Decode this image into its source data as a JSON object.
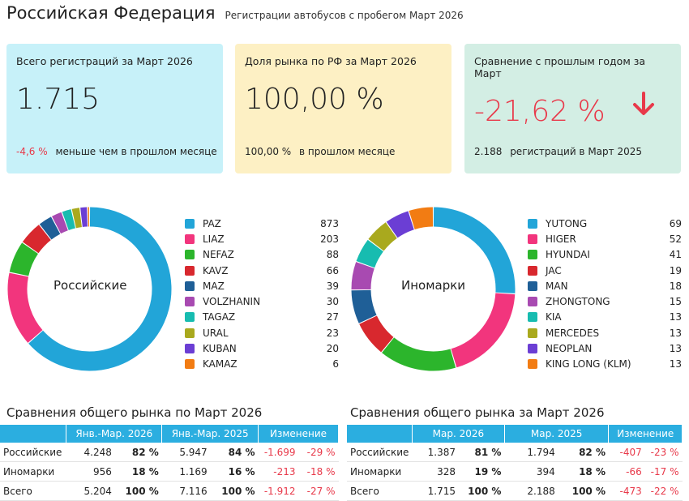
{
  "header": {
    "title": "Российская Федерация",
    "subtitle": "Регистрации автобусов с пробегом Март 2026"
  },
  "cards": {
    "total": {
      "label": "Всего регистраций за Март 2026",
      "value": "1.715",
      "delta": "-4,6 %",
      "delta_text": "меньше чем в прошлом месяце",
      "bg": "#c7f1f9"
    },
    "share": {
      "label": "Доля рынка по РФ за Март 2026",
      "value": "100,00 %",
      "delta": "100,00 %",
      "delta_text": "в прошлом месяце",
      "bg": "#fdf0c4"
    },
    "yoy": {
      "label": "Сравнение с прошлым годом за Март",
      "value": "-21,62 %",
      "delta": "2.188",
      "delta_text": "регистраций в Март 2025",
      "bg": "#d3eee4"
    }
  },
  "russian": {
    "center_label": "Российские",
    "items": [
      {
        "name": "PAZ",
        "value": 873,
        "color": "#22a5d8"
      },
      {
        "name": "LIAZ",
        "value": 203,
        "color": "#f2357d"
      },
      {
        "name": "NEFAZ",
        "value": 88,
        "color": "#2cb52c"
      },
      {
        "name": "KAVZ",
        "value": 66,
        "color": "#d8282e"
      },
      {
        "name": "MAZ",
        "value": 39,
        "color": "#1f5f97"
      },
      {
        "name": "VOLZHANIN",
        "value": 30,
        "color": "#a84ab1"
      },
      {
        "name": "TAGAZ",
        "value": 27,
        "color": "#17bcb0"
      },
      {
        "name": "URAL",
        "value": 23,
        "color": "#a9a91e"
      },
      {
        "name": "KUBAN",
        "value": 20,
        "color": "#6b3ed4"
      },
      {
        "name": "KAMAZ",
        "value": 6,
        "color": "#f27c13"
      }
    ]
  },
  "foreign": {
    "center_label": "Иномарки",
    "items": [
      {
        "name": "YUTONG",
        "value": 69,
        "color": "#22a5d8"
      },
      {
        "name": "HIGER",
        "value": 52,
        "color": "#f2357d"
      },
      {
        "name": "HYUNDAI",
        "value": 41,
        "color": "#2cb52c"
      },
      {
        "name": "JAC",
        "value": 19,
        "color": "#d8282e"
      },
      {
        "name": "MAN",
        "value": 18,
        "color": "#1f5f97"
      },
      {
        "name": "ZHONGTONG",
        "value": 15,
        "color": "#a84ab1"
      },
      {
        "name": "KIA",
        "value": 13,
        "color": "#17bcb0"
      },
      {
        "name": "MERCEDES",
        "value": 13,
        "color": "#a9a91e"
      },
      {
        "name": "NEOPLAN",
        "value": 13,
        "color": "#6b3ed4"
      },
      {
        "name": "KING LONG (KLM)",
        "value": 13,
        "color": "#f27c13"
      }
    ]
  },
  "table_ytd": {
    "title": "Сравнения общего рынка по Март 2026",
    "headers": [
      "Янв.-Мар. 2026",
      "Янв.-Мар. 2025",
      "Изменение"
    ],
    "rows": [
      {
        "label": "Российские",
        "v1": "4.248",
        "p1": "82 %",
        "v2": "5.947",
        "p2": "84 %",
        "d": "-1.699",
        "dp": "-29 %"
      },
      {
        "label": "Иномарки",
        "v1": "956",
        "p1": "18 %",
        "v2": "1.169",
        "p2": "16 %",
        "d": "-213",
        "dp": "-18 %"
      },
      {
        "label": "Всего",
        "v1": "5.204",
        "p1": "100 %",
        "v2": "7.116",
        "p2": "100 %",
        "d": "-1.912",
        "dp": "-27 %"
      }
    ]
  },
  "table_month": {
    "title": "Сравнения общего рынка за Март 2026",
    "headers": [
      "Мар. 2026",
      "Мар. 2025",
      "Изменение"
    ],
    "rows": [
      {
        "label": "Российские",
        "v1": "1.387",
        "p1": "81 %",
        "v2": "1.794",
        "p2": "82 %",
        "d": "-407",
        "dp": "-23 %"
      },
      {
        "label": "Иномарки",
        "v1": "328",
        "p1": "19 %",
        "v2": "394",
        "p2": "18 %",
        "d": "-66",
        "dp": "-17 %"
      },
      {
        "label": "Всего",
        "v1": "1.715",
        "p1": "100 %",
        "v2": "2.188",
        "p2": "100 %",
        "d": "-473",
        "dp": "-22 %"
      }
    ]
  }
}
